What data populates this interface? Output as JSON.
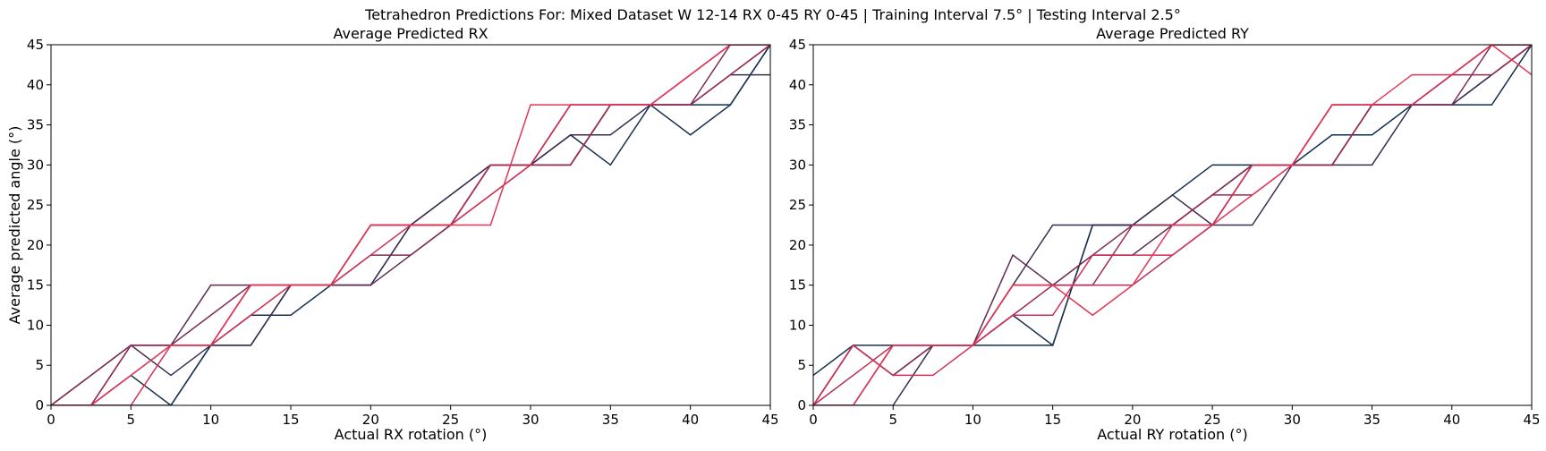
{
  "figure": {
    "suptitle": "Tetrahedron Predictions For: Mixed Dataset W 12-14 RX 0-45 RY 0-45 | Training Interval 7.5° | Testing Interval 2.5°"
  },
  "colors": {
    "series": [
      "#0f2f4f",
      "#1a3050",
      "#3b2d50",
      "#5c2d52",
      "#7c2c53",
      "#9b2a54",
      "#b82b55",
      "#d12e55",
      "#e33657"
    ]
  },
  "chart_data": [
    {
      "type": "line",
      "title": "Average Predicted RX",
      "xlabel": "Actual RX rotation (°)",
      "ylabel": "Average predicted angle (°)",
      "xlim": [
        0,
        45
      ],
      "ylim": [
        0,
        45
      ],
      "xticks": [
        0,
        5,
        10,
        15,
        20,
        25,
        30,
        35,
        40,
        45
      ],
      "yticks": [
        0,
        5,
        10,
        15,
        20,
        25,
        30,
        35,
        40,
        45
      ],
      "grid": false,
      "legend": "none",
      "x": [
        0,
        2.5,
        5,
        7.5,
        10,
        12.5,
        15,
        17.5,
        20,
        22.5,
        25,
        27.5,
        30,
        32.5,
        35,
        37.5,
        40,
        42.5,
        45
      ],
      "series": [
        {
          "values": [
            0,
            0,
            0,
            0,
            7.5,
            7.5,
            15,
            15,
            15,
            22.5,
            22.5,
            30,
            30,
            30,
            37.5,
            37.5,
            37.5,
            37.5,
            45
          ]
        },
        {
          "values": [
            0,
            0,
            3.75,
            0,
            7.5,
            11.25,
            11.25,
            15,
            22.5,
            22.5,
            26.25,
            30,
            30,
            33.75,
            30,
            37.5,
            33.75,
            37.5,
            45
          ]
        },
        {
          "values": [
            0,
            3.75,
            7.5,
            3.75,
            7.5,
            7.5,
            15,
            15,
            15,
            22.5,
            26.25,
            30,
            30,
            33.75,
            33.75,
            37.5,
            37.5,
            41.25,
            41.25
          ]
        },
        {
          "values": [
            0,
            0,
            7.5,
            7.5,
            15,
            15,
            15,
            15,
            15,
            18.75,
            22.5,
            30,
            30,
            30,
            37.5,
            37.5,
            37.5,
            41.25,
            45
          ]
        },
        {
          "values": [
            0,
            3.75,
            7.5,
            7.5,
            11.25,
            15,
            15,
            15,
            18.75,
            18.75,
            22.5,
            30,
            30,
            37.5,
            37.5,
            37.5,
            37.5,
            45,
            45
          ]
        },
        {
          "values": [
            0,
            0,
            7.5,
            7.5,
            7.5,
            15,
            15,
            15,
            22.5,
            22.5,
            22.5,
            26.25,
            30,
            30,
            37.5,
            37.5,
            37.5,
            41.25,
            45
          ]
        },
        {
          "values": [
            0,
            0,
            3.75,
            7.5,
            7.5,
            15,
            15,
            15,
            22.5,
            22.5,
            22.5,
            30,
            30,
            37.5,
            37.5,
            37.5,
            41.25,
            45,
            45
          ]
        },
        {
          "values": [
            0,
            0,
            0,
            7.5,
            7.5,
            11.25,
            15,
            15,
            18.75,
            22.5,
            22.5,
            26.25,
            30,
            37.5,
            37.5,
            37.5,
            41.25,
            45,
            45
          ]
        },
        {
          "values": [
            0,
            0,
            3.75,
            7.5,
            7.5,
            15,
            15,
            15,
            22.5,
            22.5,
            22.5,
            22.5,
            37.5,
            37.5,
            37.5,
            37.5,
            41.25,
            45,
            45
          ]
        }
      ]
    },
    {
      "type": "line",
      "title": "Average Predicted RY",
      "xlabel": "Actual RY rotation (°)",
      "ylabel": "",
      "xlim": [
        0,
        45
      ],
      "ylim": [
        0,
        45
      ],
      "xticks": [
        0,
        5,
        10,
        15,
        20,
        25,
        30,
        35,
        40,
        45
      ],
      "yticks": [
        0,
        5,
        10,
        15,
        20,
        25,
        30,
        35,
        40,
        45
      ],
      "grid": false,
      "legend": "none",
      "x": [
        0,
        2.5,
        5,
        7.5,
        10,
        12.5,
        15,
        17.5,
        20,
        22.5,
        25,
        27.5,
        30,
        32.5,
        35,
        37.5,
        40,
        42.5,
        45
      ],
      "series": [
        {
          "values": [
            3.75,
            7.5,
            3.75,
            7.5,
            7.5,
            7.5,
            7.5,
            22.5,
            22.5,
            26.25,
            30,
            30,
            30,
            33.75,
            33.75,
            37.5,
            37.5,
            37.5,
            45
          ]
        },
        {
          "values": [
            0,
            7.5,
            7.5,
            7.5,
            7.5,
            11.25,
            7.5,
            22.5,
            22.5,
            22.5,
            22.5,
            30,
            30,
            30,
            37.5,
            37.5,
            37.5,
            41.25,
            45
          ]
        },
        {
          "values": [
            0,
            0,
            0,
            7.5,
            7.5,
            15,
            22.5,
            22.5,
            22.5,
            26.25,
            22.5,
            22.5,
            30,
            30,
            30,
            37.5,
            37.5,
            41.25,
            45
          ]
        },
        {
          "values": [
            0,
            0,
            7.5,
            7.5,
            7.5,
            18.75,
            15,
            18.75,
            18.75,
            22.5,
            26.25,
            30,
            30,
            30,
            37.5,
            37.5,
            41.25,
            45,
            45
          ]
        },
        {
          "values": [
            0,
            7.5,
            3.75,
            7.5,
            7.5,
            15,
            15,
            18.75,
            22.5,
            22.5,
            26.25,
            30,
            30,
            37.5,
            37.5,
            37.5,
            37.5,
            45,
            45
          ]
        },
        {
          "values": [
            0,
            0,
            7.5,
            7.5,
            7.5,
            11.25,
            15,
            15,
            22.5,
            22.5,
            26.25,
            26.25,
            30,
            30,
            37.5,
            37.5,
            41.25,
            41.25,
            45
          ]
        },
        {
          "values": [
            0,
            3.75,
            7.5,
            7.5,
            7.5,
            15,
            15,
            15,
            15,
            18.75,
            22.5,
            30,
            30,
            37.5,
            37.5,
            37.5,
            41.25,
            45,
            45
          ]
        },
        {
          "values": [
            0,
            7.5,
            3.75,
            3.75,
            7.5,
            11.25,
            11.25,
            18.75,
            18.75,
            18.75,
            22.5,
            30,
            30,
            37.5,
            37.5,
            37.5,
            41.25,
            45,
            45
          ]
        },
        {
          "values": [
            0,
            0,
            7.5,
            7.5,
            7.5,
            15,
            15,
            11.25,
            15,
            22.5,
            22.5,
            26.25,
            30,
            37.5,
            37.5,
            41.25,
            41.25,
            45,
            41.25
          ]
        }
      ]
    }
  ]
}
